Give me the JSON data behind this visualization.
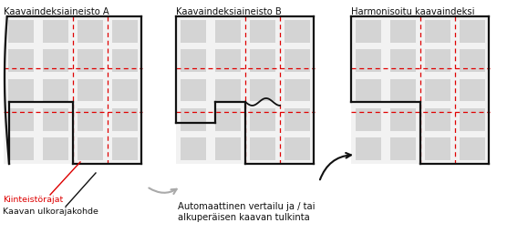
{
  "bg_color": "#ffffff",
  "panel_titles": [
    "Kaavaindeksiaineisto A",
    "Kaavaindeksiaineisto B",
    "Harmonisoitu kaavaindeksi"
  ],
  "label_kiinteisto": "Kiinteistörajat",
  "label_kaavan": "Kaavan ulkorajakohde",
  "label_auto": "Automaattinen vertailu ja / tai\nalkuperäisen kaavan tulkinta",
  "outline_color": "#111111",
  "dashed_color": "#e00000",
  "map_bg": "#f2f2f2",
  "block_color": "#d4d4d4",
  "block_color2": "#c8c8c8",
  "title_fontsize": 7.2,
  "label_fontsize": 6.8,
  "anno_fontsize": 7.2
}
